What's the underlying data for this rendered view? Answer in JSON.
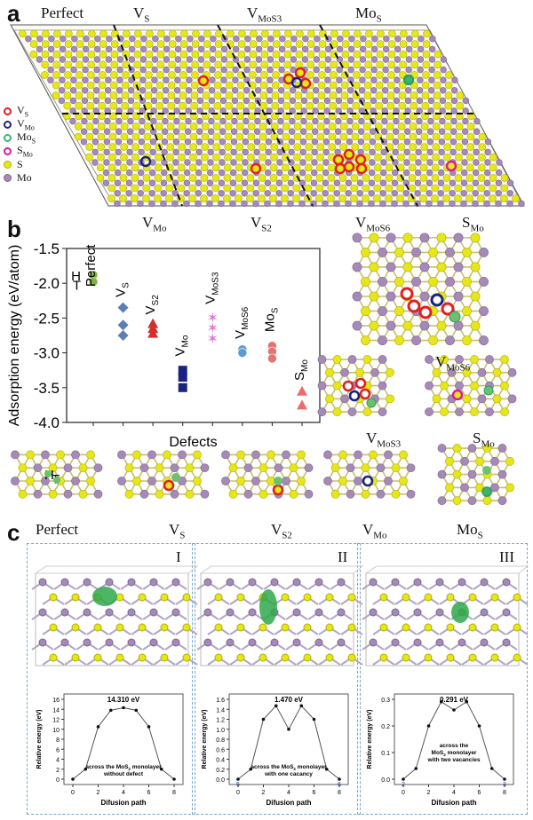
{
  "panels": {
    "a": {
      "letter": "a",
      "top_labels": [
        {
          "main": "Perfect",
          "sub": ""
        },
        {
          "main": "V",
          "sub": "S"
        },
        {
          "main": "V",
          "sub": "MoS3"
        },
        {
          "main": "Mo",
          "sub": "S"
        }
      ],
      "bottom_labels": [
        {
          "main": "V",
          "sub": "Mo"
        },
        {
          "main": "V",
          "sub": "S2"
        },
        {
          "main": "V",
          "sub": "MoS6"
        },
        {
          "main": "S",
          "sub": "Mo"
        }
      ],
      "legend": [
        {
          "main": "V",
          "sub": "S",
          "fill": "#ffffff",
          "stroke": "#e02020"
        },
        {
          "main": "V",
          "sub": "Mo",
          "fill": "#ffffff",
          "stroke": "#1a237e"
        },
        {
          "main": "Mo",
          "sub": "S",
          "fill": "#ffffff",
          "stroke": "#3cb371"
        },
        {
          "main": "S",
          "sub": "Mo",
          "fill": "#ffffff",
          "stroke": "#d81b9a"
        },
        {
          "main": "S",
          "sub": "",
          "fill": "#e6e61a",
          "stroke": "#b5b500"
        },
        {
          "main": "Mo",
          "sub": "",
          "fill": "#a58ab8",
          "stroke": "#7c6590"
        }
      ]
    },
    "b": {
      "letter": "b",
      "chart_data": {
        "type": "scatter",
        "title": "",
        "xlabel": "Defects",
        "ylabel": "Adsorption energy (eV/atom)",
        "ylim": [
          -4.0,
          -1.5
        ],
        "yticks": [
          "-1.5",
          "-2.0",
          "-2.5",
          "-3.0",
          "-3.5",
          "-4.0"
        ],
        "series": [
          {
            "name": "Perfect",
            "color": "#7cb342",
            "marker": "circle",
            "x": 1,
            "values": [
              -1.88,
              -1.98
            ]
          },
          {
            "name": "VS",
            "color": "#5b7fb3",
            "marker": "diamond",
            "x": 2,
            "values": [
              -2.35,
              -2.6,
              -2.75
            ]
          },
          {
            "name": "VS2",
            "color": "#d32f2f",
            "marker": "triangle",
            "x": 3,
            "values": [
              -2.58,
              -2.65,
              -2.72
            ]
          },
          {
            "name": "VMo",
            "color": "#1a237e",
            "marker": "square",
            "x": 4,
            "values": [
              -3.25,
              -3.35,
              -3.5
            ]
          },
          {
            "name": "VMoS3",
            "color": "#e07ad0",
            "marker": "star",
            "x": 5,
            "values": [
              -2.5,
              -2.65,
              -2.8
            ]
          },
          {
            "name": "VMoS6",
            "color": "#5a9bd4",
            "marker": "circle",
            "x": 6,
            "values": [
              -2.95,
              -3.0
            ]
          },
          {
            "name": "MoS",
            "color": "#e57373",
            "marker": "circle",
            "x": 7,
            "values": [
              -2.9,
              -2.98,
              -3.08
            ]
          },
          {
            "name": "SMo",
            "color": "#ef6c6c",
            "marker": "triangle",
            "x": 8,
            "values": [
              -3.55,
              -3.75
            ]
          }
        ],
        "point_labels": [
          {
            "main": "Perfect",
            "sub": ""
          },
          {
            "main": "V",
            "sub": "S"
          },
          {
            "main": "V",
            "sub": "S2"
          },
          {
            "main": "V",
            "sub": "Mo"
          },
          {
            "main": "V",
            "sub": "MoS3"
          },
          {
            "main": "V",
            "sub": "MoS6"
          },
          {
            "main": "Mo",
            "sub": "S"
          },
          {
            "main": "S",
            "sub": "Mo"
          }
        ],
        "site_labels": [
          "H",
          "T"
        ]
      },
      "struct_labels": [
        {
          "main": "V",
          "sub": "MoS6"
        },
        {
          "main": "V",
          "sub": "MoS3"
        },
        {
          "main": "S",
          "sub": "Mo"
        }
      ],
      "bottom_labels": [
        {
          "main": "Perfect",
          "sub": ""
        },
        {
          "main": "V",
          "sub": "S"
        },
        {
          "main": "V",
          "sub": "S2"
        },
        {
          "main": "V",
          "sub": "Mo"
        },
        {
          "main": "Mo",
          "sub": "S"
        }
      ]
    },
    "c": {
      "letter": "c",
      "sub_panels": [
        {
          "roman": "I",
          "barrier": "14.310 eV",
          "caption1": "across the MoS",
          "caption_sub": "2",
          "caption2": " monolayer",
          "caption3": "without defect",
          "chart": {
            "type": "line",
            "xlabel": "Difusion path",
            "ylabel": "Relative energy (eV)",
            "ylim": [
              0,
              16
            ],
            "yticks": [
              "0",
              "2",
              "4",
              "6",
              "8",
              "10",
              "12",
              "14",
              "16"
            ],
            "xticks": [
              "0",
              "2",
              "4",
              "6",
              "8"
            ],
            "x": [
              0,
              1,
              2,
              3,
              4,
              5,
              6,
              7,
              8
            ],
            "values": [
              0,
              2,
              10.5,
              13.8,
              14.31,
              13.8,
              10.5,
              2,
              0
            ],
            "end_labels": [
              "",
              ""
            ]
          }
        },
        {
          "roman": "II",
          "barrier": "1.470 eV",
          "caption1": "across the MoS",
          "caption_sub": "2",
          "caption2": " monolayer",
          "caption3": "with one cacancy",
          "chart": {
            "type": "line",
            "xlabel": "Difusion path",
            "ylabel": "Relative energy (eV)",
            "ylim": [
              0,
              1.6
            ],
            "yticks": [
              "0.0",
              "0.2",
              "0.4",
              "0.6",
              "0.8",
              "1.0",
              "1.2",
              "1.4",
              "1.6"
            ],
            "xticks": [
              "0",
              "2",
              "4",
              "6",
              "8"
            ],
            "x": [
              0,
              1,
              2,
              3,
              4,
              5,
              6,
              7,
              8
            ],
            "values": [
              0,
              0.2,
              1.2,
              1.47,
              1.0,
              1.47,
              1.2,
              0.2,
              0
            ],
            "end_labels": [
              "5",
              "6"
            ]
          }
        },
        {
          "roman": "III",
          "barrier": "0.291 eV",
          "caption1": "across the",
          "caption_sub": "",
          "caption2": "",
          "caption3": "with two vacancies",
          "caption_line2": "MoS",
          "caption_line2_sub": "2",
          "caption_line2_rest": " monolayer",
          "chart": {
            "type": "line",
            "xlabel": "Difusion path",
            "ylabel": "Relative energy (eV)",
            "ylim": [
              0,
              0.3
            ],
            "yticks": [
              "0.0",
              "0.1",
              "0.2",
              "0.3"
            ],
            "xticks": [
              "0",
              "2",
              "4",
              "6",
              "8"
            ],
            "x": [
              0,
              1,
              2,
              3,
              4,
              5,
              6,
              7,
              8
            ],
            "values": [
              0,
              0.04,
              0.2,
              0.291,
              0.26,
              0.291,
              0.2,
              0.04,
              0
            ],
            "end_labels": [
              "2",
              "3"
            ]
          }
        }
      ]
    }
  }
}
